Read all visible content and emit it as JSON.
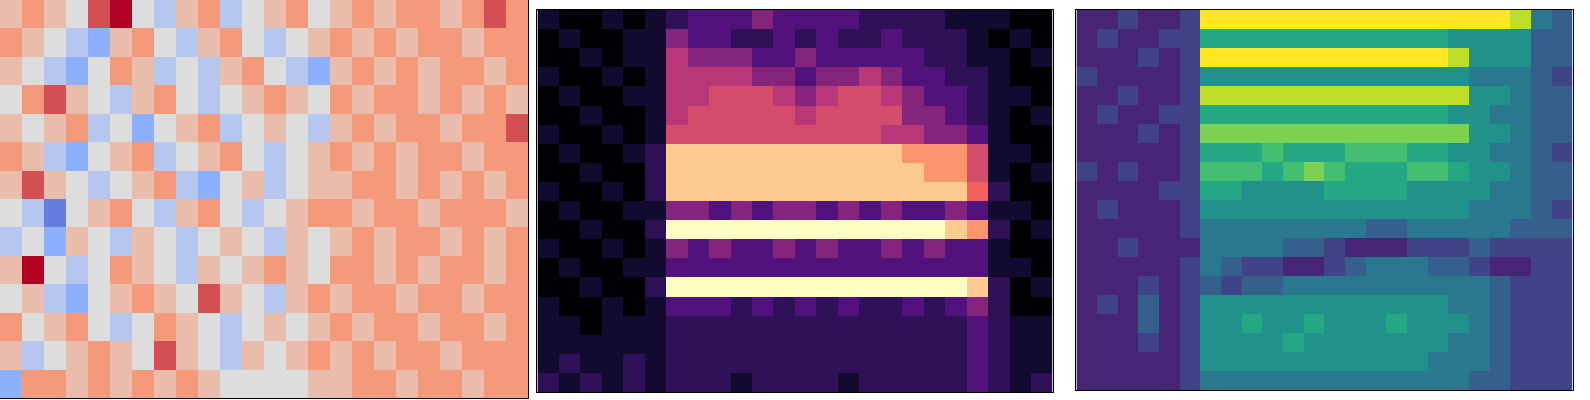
{
  "chart_data": [
    {
      "type": "heatmap",
      "color": "coolwarm",
      "tick_labels": false,
      "zlim": [
        0,
        8
      ],
      "z": [
        [
          5,
          6,
          5,
          4,
          7,
          8,
          4,
          3,
          5,
          6,
          3,
          4,
          5,
          6,
          4,
          5,
          6,
          5,
          6,
          6,
          5,
          6,
          7,
          6
        ],
        [
          6,
          5,
          4,
          3,
          2,
          5,
          6,
          4,
          3,
          5,
          6,
          4,
          3,
          4,
          5,
          6,
          5,
          6,
          5,
          6,
          6,
          5,
          6,
          6
        ],
        [
          5,
          4,
          3,
          2,
          4,
          6,
          5,
          3,
          4,
          3,
          5,
          6,
          4,
          3,
          2,
          5,
          6,
          5,
          6,
          5,
          6,
          6,
          5,
          6
        ],
        [
          4,
          6,
          7,
          5,
          4,
          3,
          5,
          6,
          4,
          3,
          4,
          5,
          6,
          5,
          4,
          6,
          5,
          6,
          6,
          5,
          6,
          5,
          6,
          5
        ],
        [
          5,
          4,
          5,
          6,
          3,
          4,
          2,
          4,
          5,
          6,
          3,
          4,
          5,
          4,
          3,
          5,
          6,
          5,
          6,
          6,
          5,
          6,
          6,
          7
        ],
        [
          6,
          5,
          3,
          2,
          4,
          5,
          6,
          3,
          4,
          5,
          6,
          4,
          3,
          4,
          5,
          6,
          5,
          6,
          5,
          6,
          6,
          5,
          6,
          6
        ],
        [
          5,
          7,
          5,
          4,
          3,
          4,
          5,
          6,
          3,
          2,
          4,
          5,
          3,
          4,
          5,
          5,
          6,
          6,
          5,
          6,
          5,
          6,
          5,
          6
        ],
        [
          4,
          3,
          1,
          4,
          5,
          6,
          4,
          3,
          5,
          6,
          4,
          3,
          4,
          5,
          6,
          6,
          5,
          6,
          6,
          5,
          6,
          6,
          6,
          5
        ],
        [
          3,
          4,
          2,
          5,
          4,
          3,
          5,
          4,
          3,
          4,
          5,
          4,
          3,
          5,
          4,
          5,
          6,
          5,
          6,
          6,
          5,
          6,
          5,
          6
        ],
        [
          5,
          8,
          4,
          3,
          4,
          6,
          5,
          4,
          3,
          5,
          4,
          5,
          6,
          5,
          4,
          6,
          6,
          5,
          6,
          5,
          6,
          6,
          5,
          6
        ],
        [
          4,
          5,
          3,
          2,
          4,
          5,
          6,
          5,
          4,
          7,
          5,
          4,
          3,
          5,
          6,
          5,
          6,
          6,
          5,
          6,
          6,
          5,
          6,
          6
        ],
        [
          6,
          4,
          5,
          6,
          4,
          3,
          4,
          6,
          5,
          4,
          3,
          4,
          5,
          4,
          5,
          6,
          5,
          6,
          6,
          5,
          6,
          6,
          5,
          6
        ],
        [
          5,
          3,
          4,
          5,
          6,
          5,
          4,
          7,
          5,
          4,
          3,
          5,
          4,
          5,
          6,
          5,
          6,
          5,
          6,
          6,
          5,
          6,
          6,
          6
        ],
        [
          2,
          6,
          6,
          5,
          6,
          5,
          6,
          5,
          6,
          5,
          4,
          4,
          4,
          4,
          5,
          5,
          6,
          6,
          5,
          6,
          6,
          5,
          6,
          6
        ]
      ]
    },
    {
      "type": "heatmap",
      "color": "magma",
      "tick_labels": false,
      "zlim": [
        0,
        10
      ],
      "z": [
        [
          1,
          0,
          0,
          1,
          0,
          1,
          2,
          3,
          3,
          3,
          4,
          3,
          3,
          3,
          3,
          2,
          2,
          2,
          2,
          1,
          1,
          1,
          0,
          0
        ],
        [
          0,
          1,
          0,
          0,
          1,
          1,
          4,
          3,
          3,
          2,
          2,
          3,
          2,
          3,
          2,
          2,
          3,
          2,
          2,
          2,
          1,
          0,
          1,
          0
        ],
        [
          0,
          0,
          1,
          0,
          1,
          1,
          5,
          4,
          4,
          4,
          3,
          3,
          4,
          3,
          3,
          3,
          3,
          3,
          2,
          2,
          1,
          1,
          0,
          1
        ],
        [
          1,
          0,
          0,
          1,
          0,
          1,
          5,
          5,
          5,
          5,
          4,
          4,
          3,
          4,
          4,
          5,
          4,
          3,
          3,
          2,
          2,
          1,
          0,
          0
        ],
        [
          0,
          1,
          0,
          0,
          1,
          1,
          5,
          5,
          6,
          6,
          6,
          5,
          4,
          5,
          6,
          6,
          5,
          4,
          3,
          3,
          2,
          1,
          1,
          0
        ],
        [
          0,
          0,
          1,
          0,
          0,
          1,
          5,
          6,
          6,
          6,
          6,
          6,
          5,
          6,
          6,
          6,
          6,
          4,
          4,
          3,
          2,
          1,
          0,
          1
        ],
        [
          1,
          0,
          0,
          1,
          0,
          1,
          6,
          6,
          6,
          6,
          6,
          6,
          6,
          6,
          6,
          6,
          5,
          5,
          4,
          4,
          3,
          1,
          0,
          0
        ],
        [
          0,
          1,
          0,
          0,
          1,
          2,
          9,
          9,
          9,
          9,
          9,
          9,
          9,
          9,
          9,
          9,
          9,
          8,
          8,
          8,
          6,
          1,
          1,
          0
        ],
        [
          0,
          0,
          1,
          0,
          0,
          2,
          9,
          9,
          9,
          9,
          9,
          9,
          9,
          9,
          9,
          9,
          9,
          9,
          8,
          8,
          6,
          1,
          0,
          1
        ],
        [
          1,
          0,
          0,
          1,
          0,
          2,
          9,
          9,
          9,
          9,
          9,
          9,
          9,
          9,
          9,
          9,
          9,
          9,
          9,
          9,
          7,
          2,
          0,
          0
        ],
        [
          0,
          1,
          0,
          0,
          1,
          1,
          4,
          4,
          3,
          4,
          3,
          4,
          4,
          3,
          4,
          3,
          4,
          3,
          3,
          4,
          3,
          1,
          1,
          0
        ],
        [
          0,
          0,
          1,
          0,
          0,
          2,
          10,
          10,
          10,
          10,
          10,
          10,
          10,
          10,
          10,
          10,
          10,
          10,
          10,
          9,
          8,
          2,
          0,
          1
        ],
        [
          1,
          0,
          0,
          1,
          0,
          1,
          4,
          3,
          4,
          3,
          3,
          4,
          3,
          4,
          3,
          3,
          4,
          3,
          4,
          3,
          3,
          1,
          0,
          0
        ],
        [
          0,
          1,
          0,
          0,
          1,
          1,
          3,
          3,
          3,
          3,
          3,
          3,
          3,
          3,
          3,
          3,
          3,
          3,
          3,
          3,
          3,
          1,
          1,
          0
        ],
        [
          0,
          0,
          1,
          0,
          0,
          2,
          10,
          10,
          10,
          10,
          10,
          10,
          10,
          10,
          10,
          10,
          10,
          10,
          10,
          10,
          9,
          2,
          0,
          1
        ],
        [
          1,
          0,
          0,
          1,
          0,
          1,
          3,
          3,
          3,
          2,
          3,
          2,
          3,
          2,
          3,
          2,
          2,
          3,
          2,
          3,
          4,
          2,
          0,
          0
        ],
        [
          1,
          1,
          0,
          1,
          1,
          1,
          2,
          2,
          2,
          2,
          2,
          2,
          2,
          2,
          2,
          2,
          2,
          2,
          2,
          2,
          3,
          2,
          1,
          1
        ],
        [
          1,
          1,
          1,
          1,
          1,
          1,
          2,
          2,
          2,
          2,
          2,
          2,
          2,
          2,
          2,
          2,
          2,
          2,
          2,
          2,
          3,
          2,
          1,
          1
        ],
        [
          1,
          2,
          1,
          1,
          2,
          1,
          2,
          2,
          2,
          2,
          2,
          2,
          2,
          2,
          2,
          2,
          2,
          2,
          2,
          2,
          3,
          2,
          1,
          1
        ],
        [
          2,
          1,
          2,
          1,
          2,
          1,
          2,
          2,
          2,
          1,
          2,
          2,
          2,
          2,
          1,
          2,
          2,
          2,
          2,
          2,
          3,
          2,
          1,
          2
        ]
      ]
    },
    {
      "type": "heatmap",
      "color": "viridis",
      "tick_labels": false,
      "zlim": [
        0,
        10
      ],
      "z": [
        [
          1,
          1,
          2,
          1,
          1,
          2,
          10,
          10,
          10,
          10,
          10,
          10,
          10,
          10,
          10,
          10,
          10,
          10,
          10,
          10,
          10,
          9,
          4,
          3
        ],
        [
          1,
          2,
          1,
          1,
          2,
          2,
          6,
          6,
          6,
          6,
          6,
          6,
          6,
          6,
          6,
          6,
          6,
          6,
          5,
          5,
          5,
          5,
          3,
          3
        ],
        [
          1,
          1,
          1,
          2,
          1,
          2,
          10,
          10,
          10,
          10,
          10,
          10,
          10,
          10,
          10,
          10,
          10,
          10,
          9,
          5,
          5,
          5,
          3,
          3
        ],
        [
          2,
          1,
          1,
          1,
          1,
          2,
          5,
          5,
          5,
          5,
          5,
          5,
          5,
          5,
          5,
          5,
          5,
          5,
          5,
          4,
          4,
          4,
          3,
          2
        ],
        [
          1,
          1,
          2,
          1,
          1,
          2,
          9,
          9,
          9,
          9,
          9,
          9,
          9,
          9,
          9,
          9,
          9,
          9,
          9,
          5,
          5,
          4,
          3,
          3
        ],
        [
          1,
          2,
          1,
          1,
          2,
          2,
          6,
          6,
          6,
          6,
          6,
          6,
          6,
          6,
          6,
          6,
          6,
          6,
          5,
          5,
          4,
          4,
          3,
          3
        ],
        [
          1,
          1,
          1,
          2,
          1,
          2,
          8,
          8,
          8,
          8,
          8,
          8,
          8,
          8,
          8,
          8,
          8,
          8,
          8,
          5,
          5,
          4,
          3,
          3
        ],
        [
          1,
          1,
          1,
          1,
          1,
          2,
          6,
          6,
          6,
          7,
          6,
          6,
          6,
          7,
          7,
          7,
          6,
          6,
          5,
          5,
          4,
          4,
          3,
          2
        ],
        [
          2,
          1,
          2,
          1,
          1,
          2,
          7,
          7,
          7,
          6,
          7,
          8,
          7,
          6,
          6,
          6,
          7,
          7,
          6,
          5,
          5,
          4,
          3,
          3
        ],
        [
          1,
          1,
          1,
          1,
          2,
          2,
          6,
          6,
          5,
          5,
          5,
          5,
          6,
          6,
          6,
          6,
          5,
          5,
          5,
          5,
          4,
          4,
          3,
          3
        ],
        [
          1,
          2,
          1,
          1,
          1,
          2,
          5,
          5,
          5,
          5,
          5,
          5,
          5,
          5,
          5,
          5,
          5,
          5,
          5,
          4,
          4,
          4,
          3,
          2
        ],
        [
          1,
          1,
          1,
          1,
          1,
          2,
          4,
          4,
          4,
          4,
          4,
          4,
          4,
          4,
          3,
          3,
          4,
          4,
          4,
          4,
          4,
          3,
          3,
          3
        ],
        [
          1,
          1,
          2,
          1,
          1,
          1,
          4,
          4,
          4,
          4,
          3,
          3,
          2,
          1,
          1,
          1,
          2,
          2,
          2,
          3,
          2,
          2,
          2,
          2
        ],
        [
          1,
          1,
          1,
          1,
          1,
          2,
          4,
          3,
          2,
          2,
          1,
          1,
          2,
          3,
          4,
          4,
          4,
          3,
          3,
          2,
          1,
          1,
          2,
          2
        ],
        [
          1,
          1,
          1,
          2,
          1,
          2,
          3,
          2,
          3,
          3,
          4,
          4,
          4,
          4,
          4,
          4,
          4,
          4,
          4,
          4,
          3,
          2,
          2,
          2
        ],
        [
          1,
          2,
          1,
          3,
          1,
          2,
          5,
          5,
          5,
          5,
          5,
          5,
          5,
          5,
          5,
          5,
          5,
          5,
          4,
          4,
          3,
          2,
          2,
          2
        ],
        [
          1,
          1,
          1,
          3,
          1,
          2,
          5,
          5,
          6,
          5,
          5,
          6,
          5,
          5,
          5,
          6,
          5,
          5,
          5,
          4,
          3,
          2,
          2,
          2
        ],
        [
          1,
          1,
          1,
          2,
          1,
          2,
          5,
          5,
          5,
          5,
          6,
          5,
          5,
          5,
          5,
          5,
          5,
          5,
          4,
          4,
          3,
          2,
          2,
          2
        ],
        [
          1,
          1,
          1,
          1,
          1,
          2,
          5,
          5,
          5,
          5,
          5,
          5,
          5,
          5,
          5,
          5,
          5,
          4,
          4,
          4,
          3,
          2,
          2,
          2
        ],
        [
          1,
          1,
          1,
          1,
          1,
          2,
          4,
          4,
          4,
          4,
          4,
          4,
          4,
          4,
          4,
          4,
          4,
          4,
          4,
          3,
          3,
          2,
          2,
          2
        ]
      ]
    }
  ]
}
